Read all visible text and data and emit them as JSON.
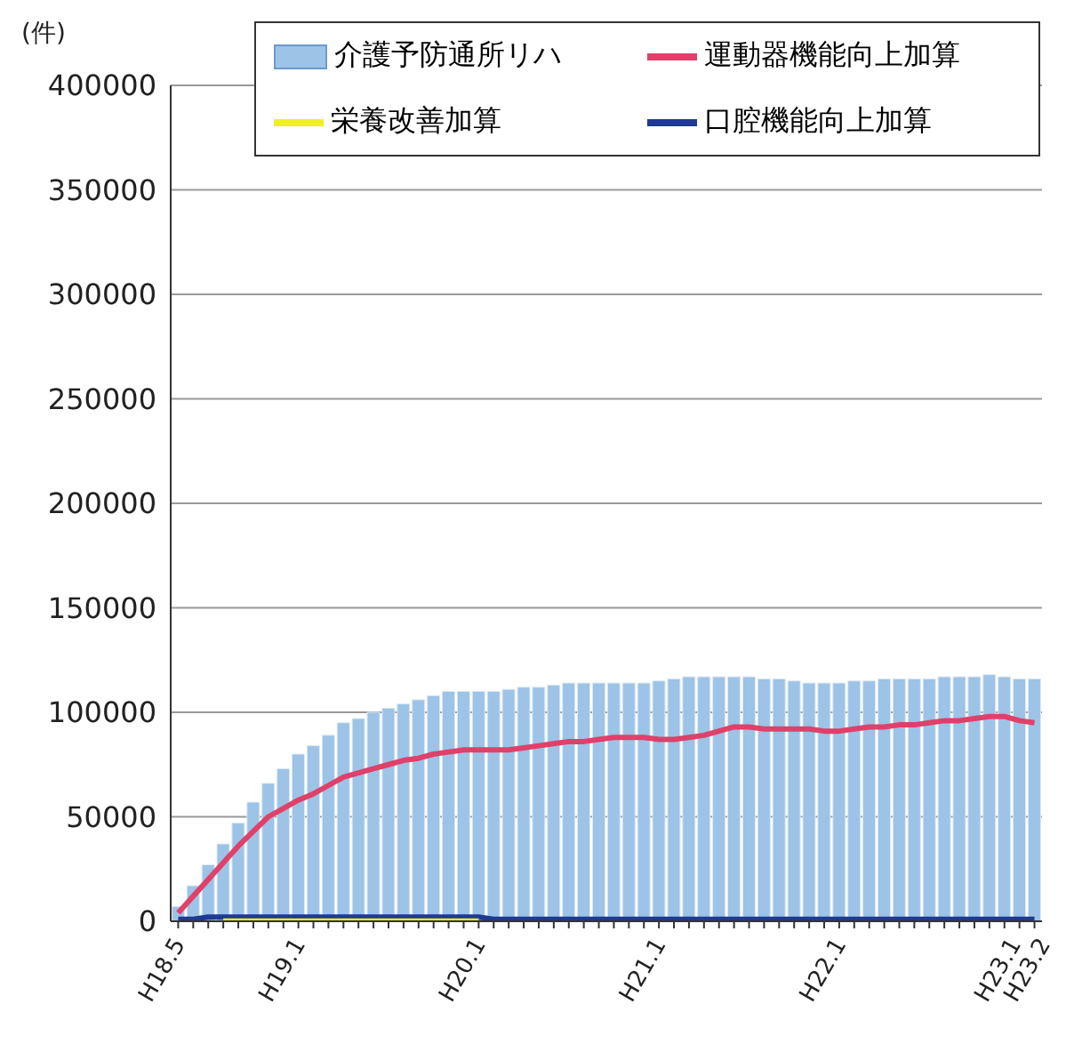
{
  "chart_data": {
    "type": "bar",
    "ylabel": "(件)",
    "categories": [
      "H18.5",
      null,
      null,
      null,
      null,
      null,
      null,
      null,
      "H19.1",
      null,
      null,
      null,
      null,
      null,
      null,
      null,
      null,
      null,
      null,
      null,
      "H20.1",
      null,
      null,
      null,
      null,
      null,
      null,
      null,
      null,
      null,
      null,
      null,
      "H21.1",
      null,
      null,
      null,
      null,
      null,
      null,
      null,
      null,
      null,
      null,
      null,
      "H22.1",
      null,
      null,
      null,
      null,
      null,
      null,
      null,
      null,
      null,
      null,
      null,
      "H23.1",
      "H23.2"
    ],
    "series": [
      {
        "name": "介護予防通所リハ",
        "color": "#9dc3e6",
        "values": [
          7000,
          17000,
          27000,
          37000,
          47000,
          57000,
          66000,
          73000,
          80000,
          84000,
          89000,
          95000,
          97000,
          100000,
          102000,
          104000,
          106000,
          108000,
          110000,
          110000,
          110000,
          110000,
          111000,
          112000,
          112000,
          113000,
          114000,
          114000,
          114000,
          114000,
          114000,
          114000,
          115000,
          116000,
          117000,
          117000,
          117000,
          117000,
          117000,
          116000,
          116000,
          115000,
          114000,
          114000,
          114000,
          115000,
          115000,
          116000,
          116000,
          116000,
          116000,
          117000,
          117000,
          117000,
          118000,
          117000,
          116000,
          116000
        ]
      },
      {
        "name": "運動器機能向上加算",
        "type": "line",
        "color": "#e0406a",
        "values": [
          4000,
          12000,
          20000,
          28000,
          36000,
          43000,
          50000,
          54000,
          58000,
          61000,
          65000,
          69000,
          71000,
          73000,
          75000,
          77000,
          78000,
          80000,
          81000,
          82000,
          82000,
          82000,
          82000,
          83000,
          84000,
          85000,
          86000,
          86000,
          87000,
          88000,
          88000,
          88000,
          87000,
          87000,
          88000,
          89000,
          91000,
          93000,
          93000,
          92000,
          92000,
          92000,
          92000,
          91000,
          91000,
          92000,
          93000,
          93000,
          94000,
          94000,
          95000,
          96000,
          96000,
          97000,
          98000,
          98000,
          96000,
          95000
        ]
      },
      {
        "name": "栄養改善加算",
        "type": "line",
        "color": "#f0f020",
        "values": [
          null,
          null,
          null,
          500,
          500,
          500,
          500,
          500,
          500,
          500,
          500,
          500,
          500,
          500,
          500,
          500,
          500,
          500,
          500,
          500,
          500,
          null,
          null,
          null,
          null,
          null,
          null,
          null,
          null,
          null,
          null,
          null,
          null,
          null,
          null,
          null,
          null,
          null,
          null,
          null,
          null,
          null,
          null,
          null,
          null,
          null,
          null,
          null,
          null,
          null,
          null,
          null,
          null,
          null,
          null,
          null,
          null,
          null
        ]
      },
      {
        "name": "口腔機能向上加算",
        "type": "line",
        "color": "#1f3a93",
        "values": [
          1000,
          1000,
          2000,
          2000,
          2000,
          2000,
          2000,
          2000,
          2000,
          2000,
          2000,
          2000,
          2000,
          2000,
          2000,
          2000,
          2000,
          2000,
          2000,
          2000,
          2000,
          1000,
          1000,
          1000,
          1000,
          1000,
          1000,
          1000,
          1000,
          1000,
          1000,
          1000,
          1000,
          1000,
          1000,
          1000,
          1000,
          1000,
          1000,
          1000,
          1000,
          1000,
          1000,
          1000,
          1000,
          1000,
          1000,
          1000,
          1000,
          1000,
          1000,
          1000,
          1000,
          1000,
          1000,
          1000,
          1000,
          1000
        ]
      }
    ],
    "ylim": [
      0,
      400000
    ],
    "yticks": [
      0,
      50000,
      100000,
      150000,
      200000,
      250000,
      300000,
      350000,
      400000
    ],
    "grid": "y",
    "legend": "top",
    "marker": "none",
    "line_style": "solid"
  }
}
